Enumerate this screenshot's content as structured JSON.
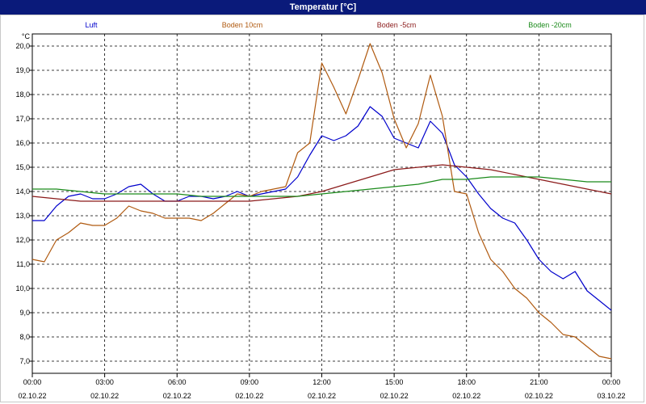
{
  "chart_data": {
    "type": "line",
    "title": "Temperatur [°C]",
    "ylabel": "°C",
    "ylim": [
      6.5,
      20.5
    ],
    "xlim": [
      0,
      24
    ],
    "grid": true,
    "y_ticks": [
      "7,0",
      "8,0",
      "9,0",
      "10,0",
      "11,0",
      "12,0",
      "13,0",
      "14,0",
      "15,0",
      "16,0",
      "17,0",
      "18,0",
      "19,0",
      "20,0"
    ],
    "y_tick_values": [
      7,
      8,
      9,
      10,
      11,
      12,
      13,
      14,
      15,
      16,
      17,
      18,
      19,
      20
    ],
    "x_ticks": [
      {
        "h": 0,
        "time": "00:00",
        "date": "02.10.22"
      },
      {
        "h": 3,
        "time": "03:00",
        "date": "02.10.22"
      },
      {
        "h": 6,
        "time": "06:00",
        "date": "02.10.22"
      },
      {
        "h": 9,
        "time": "09:00",
        "date": "02.10.22"
      },
      {
        "h": 12,
        "time": "12:00",
        "date": "02.10.22"
      },
      {
        "h": 15,
        "time": "15:00",
        "date": "02.10.22"
      },
      {
        "h": 18,
        "time": "18:00",
        "date": "02.10.22"
      },
      {
        "h": 21,
        "time": "21:00",
        "date": "02.10.22"
      },
      {
        "h": 24,
        "time": "00:00",
        "date": "03.10.22"
      }
    ],
    "series": [
      {
        "name": "Luft",
        "color": "#0000cc",
        "x": [
          0,
          0.5,
          1,
          1.5,
          2,
          2.5,
          3,
          3.5,
          4,
          4.5,
          5,
          5.5,
          6,
          6.5,
          7,
          7.5,
          8,
          8.5,
          9,
          9.5,
          10,
          10.5,
          11,
          11.5,
          12,
          12.5,
          13,
          13.5,
          14,
          14.5,
          15,
          15.5,
          16,
          16.5,
          17,
          17.5,
          18,
          18.5,
          19,
          19.5,
          20,
          20.5,
          21,
          21.5,
          22,
          22.5,
          23,
          23.5,
          24
        ],
        "values": [
          12.8,
          12.8,
          13.4,
          13.8,
          13.9,
          13.7,
          13.7,
          13.9,
          14.2,
          14.3,
          13.9,
          13.6,
          13.6,
          13.8,
          13.8,
          13.7,
          13.8,
          14.0,
          13.8,
          13.9,
          14.0,
          14.1,
          14.6,
          15.5,
          16.3,
          16.1,
          16.3,
          16.7,
          17.5,
          17.1,
          16.2,
          16.0,
          15.8,
          16.9,
          16.4,
          15.1,
          14.6,
          13.9,
          13.3,
          12.9,
          12.7,
          12.0,
          11.2,
          10.7,
          10.4,
          10.7,
          9.9,
          9.5,
          9.1
        ]
      },
      {
        "name": "Boden 10cm",
        "color": "#b05a10",
        "x": [
          0,
          0.5,
          1,
          1.5,
          2,
          2.5,
          3,
          3.5,
          4,
          4.5,
          5,
          5.5,
          6,
          6.5,
          7,
          7.5,
          8,
          8.5,
          9,
          9.5,
          10,
          10.5,
          11,
          11.5,
          12,
          12.5,
          13,
          13.5,
          14,
          14.5,
          15,
          15.5,
          16,
          16.5,
          17,
          17.5,
          18,
          18.5,
          19,
          19.5,
          20,
          20.5,
          21,
          21.5,
          22,
          22.5,
          23,
          23.5,
          24
        ],
        "values": [
          11.2,
          11.1,
          12.0,
          12.3,
          12.7,
          12.6,
          12.6,
          12.9,
          13.4,
          13.2,
          13.1,
          12.9,
          12.9,
          12.9,
          12.8,
          13.1,
          13.5,
          13.9,
          13.8,
          14.0,
          14.1,
          14.2,
          15.6,
          16.0,
          19.3,
          18.3,
          17.2,
          18.6,
          20.1,
          18.9,
          17.0,
          15.8,
          16.8,
          18.8,
          17.1,
          14.0,
          13.9,
          12.3,
          11.2,
          10.7,
          10.0,
          9.6,
          9.0,
          8.6,
          8.1,
          8.0,
          7.6,
          7.2,
          7.1
        ]
      },
      {
        "name": "Boden -5cm",
        "color": "#8b1a1a",
        "x": [
          0,
          1,
          2,
          3,
          4,
          5,
          6,
          7,
          8,
          9,
          10,
          11,
          12,
          13,
          14,
          15,
          16,
          17,
          18,
          19,
          20,
          21,
          22,
          23,
          24
        ],
        "values": [
          13.8,
          13.7,
          13.6,
          13.6,
          13.6,
          13.6,
          13.6,
          13.6,
          13.6,
          13.6,
          13.7,
          13.8,
          14.0,
          14.3,
          14.6,
          14.9,
          15.0,
          15.1,
          15.0,
          14.9,
          14.7,
          14.5,
          14.3,
          14.1,
          13.9
        ]
      },
      {
        "name": "Boden -20cm",
        "color": "#1a8a1a",
        "x": [
          0,
          1,
          2,
          3,
          4,
          5,
          6,
          7,
          8,
          9,
          10,
          11,
          12,
          13,
          14,
          15,
          16,
          17,
          18,
          19,
          20,
          21,
          22,
          23,
          24
        ],
        "values": [
          14.1,
          14.1,
          14.0,
          13.9,
          13.9,
          13.9,
          13.9,
          13.8,
          13.8,
          13.8,
          13.8,
          13.8,
          13.9,
          14.0,
          14.1,
          14.2,
          14.3,
          14.5,
          14.5,
          14.6,
          14.6,
          14.6,
          14.5,
          14.4,
          14.4
        ]
      }
    ]
  }
}
